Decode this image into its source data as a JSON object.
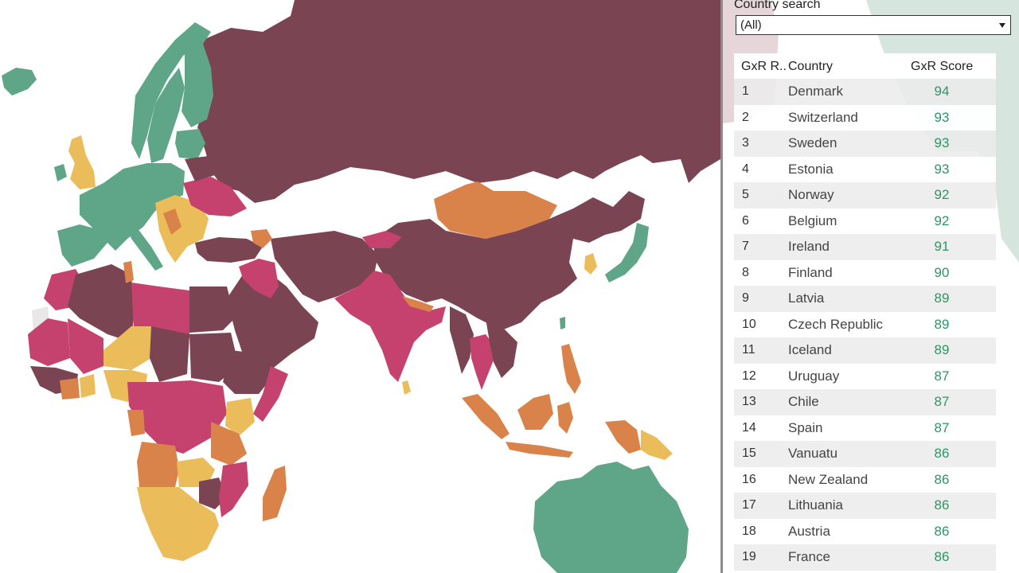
{
  "search": {
    "label": "Country search",
    "selected": "(All)"
  },
  "colors": {
    "very_high": "#5fa688",
    "high": "#ebbc5a",
    "moderate": "#d9834b",
    "low": "#c5426e",
    "very_low": "#7a4452",
    "no_data": "#e8e8e8",
    "score_text": "#2e9468"
  },
  "table": {
    "headers": {
      "rank": "GxR R..",
      "country": "Country",
      "score": "GxR Score"
    },
    "rows": [
      {
        "rank": "1",
        "country": "Denmark",
        "score": "94"
      },
      {
        "rank": "2",
        "country": "Switzerland",
        "score": "93"
      },
      {
        "rank": "3",
        "country": "Sweden",
        "score": "93"
      },
      {
        "rank": "4",
        "country": "Estonia",
        "score": "93"
      },
      {
        "rank": "5",
        "country": "Norway",
        "score": "92"
      },
      {
        "rank": "6",
        "country": "Belgium",
        "score": "92"
      },
      {
        "rank": "7",
        "country": "Ireland",
        "score": "91"
      },
      {
        "rank": "8",
        "country": "Finland",
        "score": "90"
      },
      {
        "rank": "9",
        "country": "Latvia",
        "score": "89"
      },
      {
        "rank": "10",
        "country": "Czech Republic",
        "score": "89"
      },
      {
        "rank": "11",
        "country": "Iceland",
        "score": "89"
      },
      {
        "rank": "12",
        "country": "Uruguay",
        "score": "87"
      },
      {
        "rank": "13",
        "country": "Chile",
        "score": "87"
      },
      {
        "rank": "14",
        "country": "Spain",
        "score": "87"
      },
      {
        "rank": "15",
        "country": "Vanuatu",
        "score": "86"
      },
      {
        "rank": "16",
        "country": "New Zealand",
        "score": "86"
      },
      {
        "rank": "17",
        "country": "Lithuania",
        "score": "86"
      },
      {
        "rank": "18",
        "country": "Austria",
        "score": "86"
      },
      {
        "rank": "19",
        "country": "France",
        "score": "86"
      }
    ]
  }
}
